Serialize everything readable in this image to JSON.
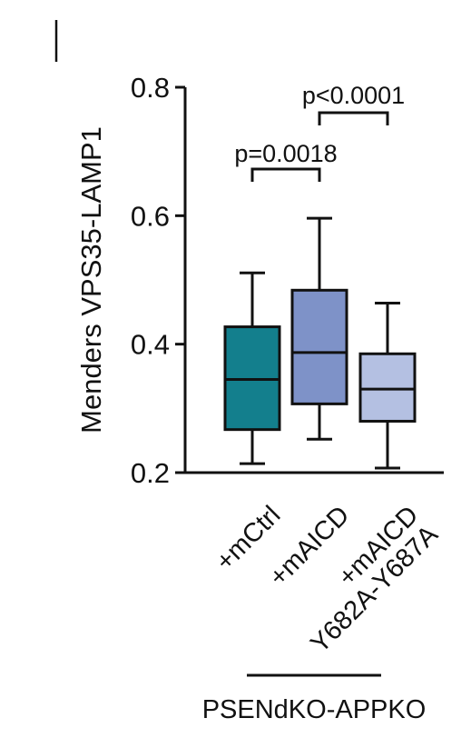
{
  "chart_data": {
    "type": "box",
    "ylabel": "Menders VPS35-LAMP1",
    "ylim": [
      0.2,
      0.8
    ],
    "yticks": [
      "0.2",
      "0.4",
      "0.6",
      "0.8"
    ],
    "ytick_values": [
      0.2,
      0.4,
      0.6,
      0.8
    ],
    "categories": [
      "+mCtrl",
      "+mAICD",
      "+mAICD Y682A-Y687A"
    ],
    "category_lines": [
      [
        "+mCtrl"
      ],
      [
        "+mAICD"
      ],
      [
        "+mAICD",
        "Y682A-Y687A"
      ]
    ],
    "boxes": [
      {
        "min": 0.214,
        "q1": 0.267,
        "median": 0.345,
        "q3": 0.427,
        "max": 0.511,
        "color": "#137f8d"
      },
      {
        "min": 0.252,
        "q1": 0.307,
        "median": 0.387,
        "q3": 0.484,
        "max": 0.596,
        "color": "#7e92c8"
      },
      {
        "min": 0.207,
        "q1": 0.28,
        "median": 0.33,
        "q3": 0.385,
        "max": 0.464,
        "color": "#b4c0e2"
      }
    ],
    "comparisons": [
      {
        "between": [
          0,
          1
        ],
        "label": "p=0.0018"
      },
      {
        "between": [
          1,
          2
        ],
        "label": "p<0.0001"
      }
    ],
    "group_label": "PSENdKO-APPKO"
  }
}
